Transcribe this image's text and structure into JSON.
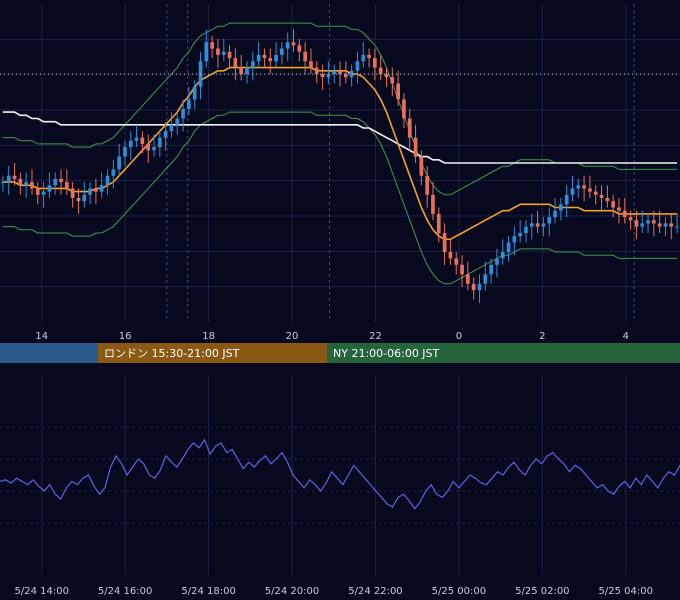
{
  "colors": {
    "background": "#070a1f",
    "grid": "#1c2240",
    "candle_up": "#2f8ed8",
    "candle_down": "#e8705a",
    "bollinger": "#3d9a52",
    "ma_short": "#f6a12a",
    "ma_long": "#f2f2f2",
    "oscillator": "#5b63e0",
    "price_line": "#c0c4d0",
    "session_asia": "#2a5a8a",
    "session_london": "#8a5a14",
    "session_ny": "#26643e",
    "vline_day": "#3a4c78"
  },
  "sessions": [
    {
      "name": "asia",
      "label": "",
      "start": 0,
      "end": 98
    },
    {
      "name": "london",
      "label": "ロンドン 15:30-21:00 JST",
      "start": 98,
      "end": 327
    },
    {
      "name": "ny",
      "label": "NY 21:00-06:00 JST",
      "start": 327,
      "end": 680
    }
  ],
  "chart_data": [
    {
      "type": "candlestick",
      "title": "",
      "x_ticks": [
        "14",
        "16",
        "18",
        "20",
        "22",
        "0",
        "2",
        "4"
      ],
      "x_tick_hours": [
        14,
        16,
        18,
        20,
        22,
        24,
        26,
        28
      ],
      "x_range_hours": [
        13.0,
        29.3
      ],
      "y_range": [
        0,
        100
      ],
      "price_line_level": 78,
      "grid": true,
      "session_markers_hours": [
        17.0,
        17.5,
        20.9,
        28.2
      ],
      "series": [
        {
          "kind": "candles",
          "style": "random-walk",
          "close": [
            44,
            46,
            45,
            43,
            44,
            42,
            40,
            41,
            43,
            45,
            44,
            42,
            39,
            38,
            40,
            42,
            41,
            43,
            46,
            48,
            52,
            55,
            57,
            58,
            56,
            54,
            55,
            58,
            60,
            62,
            64,
            67,
            70,
            74,
            82,
            88,
            86,
            84,
            85,
            83,
            80,
            78,
            80,
            82,
            84,
            83,
            82,
            84,
            86,
            88,
            87,
            85,
            82,
            80,
            78,
            77,
            78,
            79,
            78,
            77,
            79,
            82,
            84,
            83,
            80,
            78,
            77,
            75,
            70,
            64,
            58,
            52,
            46,
            40,
            34,
            28,
            22,
            20,
            18,
            15,
            12,
            10,
            12,
            15,
            18,
            20,
            22,
            25,
            27,
            28,
            30,
            31,
            30,
            31,
            33,
            35,
            37,
            40,
            42,
            43,
            42,
            41,
            40,
            39,
            38,
            36,
            35,
            33,
            32,
            30,
            31,
            32,
            31,
            30,
            31,
            30,
            30
          ]
        },
        {
          "kind": "line",
          "name": "",
          "role": "ma_short",
          "values": [
            44,
            44,
            44,
            43,
            43,
            43,
            42,
            42,
            42,
            42,
            42,
            42,
            41,
            41,
            41,
            41,
            42,
            42,
            43,
            44,
            46,
            48,
            50,
            52,
            54,
            56,
            58,
            60,
            62,
            64,
            66,
            69,
            71,
            74,
            76,
            77,
            78,
            79,
            79,
            80,
            80,
            80,
            80,
            80,
            80,
            80,
            80,
            80,
            80,
            80,
            80,
            80,
            80,
            80,
            79,
            79,
            79,
            79,
            79,
            79,
            78,
            78,
            77,
            75,
            73,
            70,
            66,
            61,
            56,
            51,
            46,
            41,
            36,
            32,
            29,
            27,
            26,
            26,
            27,
            28,
            29,
            30,
            31,
            32,
            33,
            34,
            35,
            35,
            36,
            37,
            37,
            37,
            37,
            37,
            37,
            36,
            36,
            36,
            36,
            36,
            35,
            35,
            35,
            35,
            35,
            35,
            34,
            34,
            34,
            34,
            34,
            34,
            34,
            34,
            34,
            34,
            34
          ]
        },
        {
          "kind": "line",
          "name": "",
          "role": "ma_long",
          "values": [
            66,
            66,
            66,
            65,
            65,
            64,
            64,
            63,
            63,
            63,
            62,
            62,
            62,
            62,
            62,
            62,
            62,
            62,
            62,
            62,
            62,
            62,
            62,
            62,
            62,
            62,
            62,
            62,
            62,
            62,
            62,
            62,
            62,
            62,
            62,
            62,
            62,
            62,
            62,
            62,
            62,
            62,
            62,
            62,
            62,
            62,
            62,
            62,
            62,
            62,
            62,
            62,
            62,
            62,
            62,
            62,
            62,
            62,
            62,
            62,
            62,
            62,
            61,
            61,
            60,
            59,
            58,
            57,
            56,
            55,
            54,
            53,
            52,
            52,
            51,
            51,
            50,
            50,
            50,
            50,
            50,
            50,
            50,
            50,
            50,
            50,
            50,
            50,
            50,
            50,
            50,
            50,
            50,
            50,
            50,
            50,
            50,
            50,
            50,
            50,
            50,
            50,
            50,
            50,
            50,
            50,
            50,
            50,
            50,
            50,
            50,
            50,
            50,
            50,
            50,
            50,
            50
          ]
        },
        {
          "kind": "band",
          "name": "",
          "role": "bollinger",
          "width": 14
        }
      ]
    },
    {
      "type": "line",
      "title": "",
      "x_ticks": [
        "5/24 14:00",
        "5/24 16:00",
        "5/24 18:00",
        "5/24 20:00",
        "5/24 22:00",
        "5/25 00:00",
        "5/25 02:00",
        "5/25 04:00"
      ],
      "x_tick_hours": [
        14,
        16,
        18,
        20,
        22,
        24,
        26,
        28
      ],
      "x_range_hours": [
        13.0,
        29.3
      ],
      "y_range": [
        0,
        100
      ],
      "grid": true,
      "series": [
        {
          "name": "",
          "role": "oscillator",
          "values": [
            46,
            47,
            45,
            48,
            46,
            44,
            47,
            43,
            40,
            44,
            38,
            35,
            42,
            46,
            44,
            48,
            50,
            43,
            38,
            42,
            55,
            62,
            57,
            50,
            55,
            60,
            57,
            50,
            48,
            53,
            62,
            58,
            55,
            60,
            66,
            70,
            67,
            72,
            63,
            68,
            70,
            64,
            66,
            60,
            54,
            58,
            55,
            59,
            62,
            57,
            60,
            64,
            58,
            50,
            46,
            42,
            47,
            44,
            40,
            45,
            52,
            48,
            44,
            50,
            56,
            52,
            48,
            44,
            40,
            36,
            32,
            30,
            36,
            38,
            34,
            29,
            33,
            40,
            44,
            38,
            36,
            40,
            46,
            42,
            46,
            50,
            48,
            45,
            44,
            48,
            52,
            50,
            55,
            58,
            53,
            50,
            56,
            60,
            57,
            62,
            64,
            60,
            57,
            52,
            56,
            54,
            50,
            46,
            42,
            44,
            40,
            38,
            43,
            46,
            42,
            48,
            44,
            50,
            46,
            42,
            48,
            52,
            50,
            56
          ]
        }
      ]
    }
  ]
}
